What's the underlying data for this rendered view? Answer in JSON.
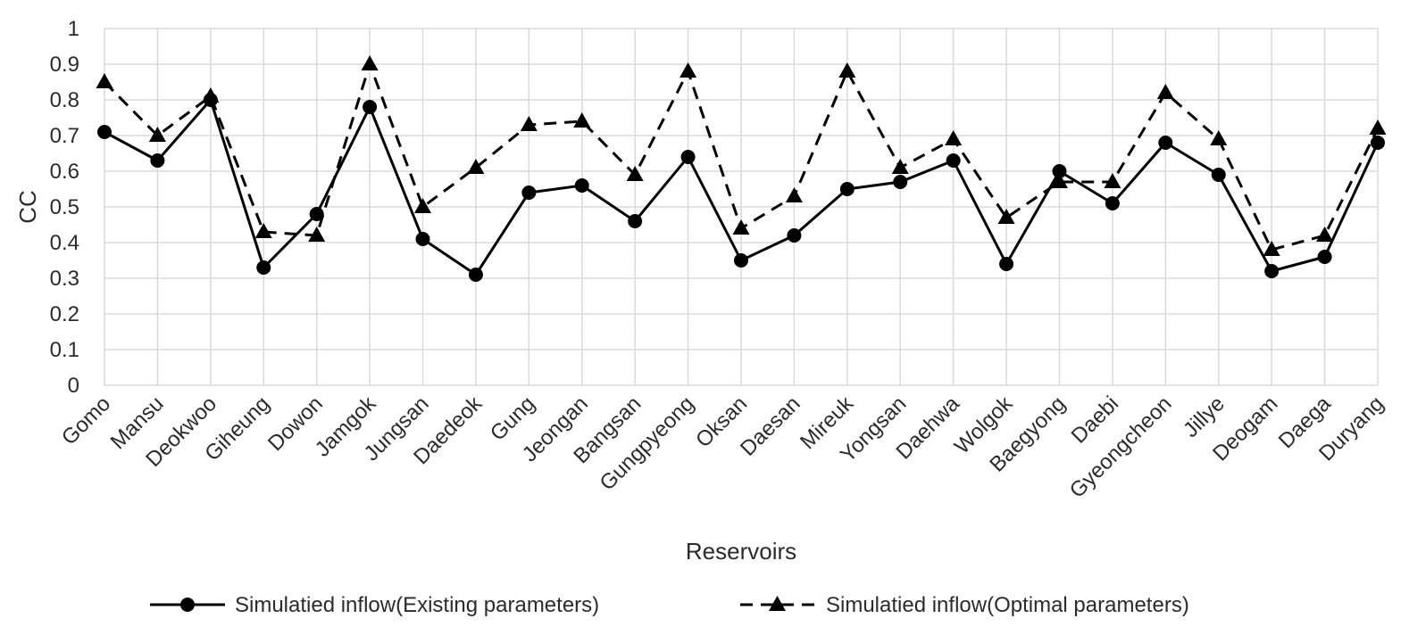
{
  "chart_data": {
    "type": "line",
    "title": "",
    "xlabel": "Reservoirs",
    "ylabel": "CC",
    "ylim": [
      0,
      1
    ],
    "yticks": [
      "0",
      "0.1",
      "0.2",
      "0.3",
      "0.4",
      "0.5",
      "0.6",
      "0.7",
      "0.8",
      "0.9",
      "1"
    ],
    "grid": true,
    "legend": "bottom",
    "categories": [
      "Gomo",
      "Mansu",
      "Deokwoo",
      "Giheung",
      "Dowon",
      "Jamgok",
      "Jungsan",
      "Daedeok",
      "Gung",
      "Jeongan",
      "Bangsan",
      "Gungpyeong",
      "Oksan",
      "Daesan",
      "Mireuk",
      "Yongsan",
      "Daehwa",
      "Wolgok",
      "Baegyong",
      "Daebi",
      "Gyeongcheon",
      "Jillye",
      "Deogam",
      "Daega",
      "Duryang"
    ],
    "series": [
      {
        "name": "Simulatied inflow(Existing parameters)",
        "style": "solid",
        "marker": "circle",
        "color": "#000000",
        "values": [
          0.71,
          0.63,
          0.8,
          0.33,
          0.48,
          0.78,
          0.41,
          0.31,
          0.54,
          0.56,
          0.46,
          0.64,
          0.35,
          0.42,
          0.55,
          0.57,
          0.63,
          0.34,
          0.6,
          0.51,
          0.68,
          0.59,
          0.32,
          0.36,
          0.68
        ]
      },
      {
        "name": "Simulatied inflow(Optimal parameters)",
        "style": "dashed",
        "marker": "triangle",
        "color": "#000000",
        "values": [
          0.85,
          0.7,
          0.81,
          0.43,
          0.42,
          0.9,
          0.5,
          0.61,
          0.73,
          0.74,
          0.59,
          0.88,
          0.44,
          0.53,
          0.88,
          0.61,
          0.69,
          0.47,
          0.57,
          0.57,
          0.82,
          0.69,
          0.38,
          0.42,
          0.72
        ]
      }
    ]
  }
}
